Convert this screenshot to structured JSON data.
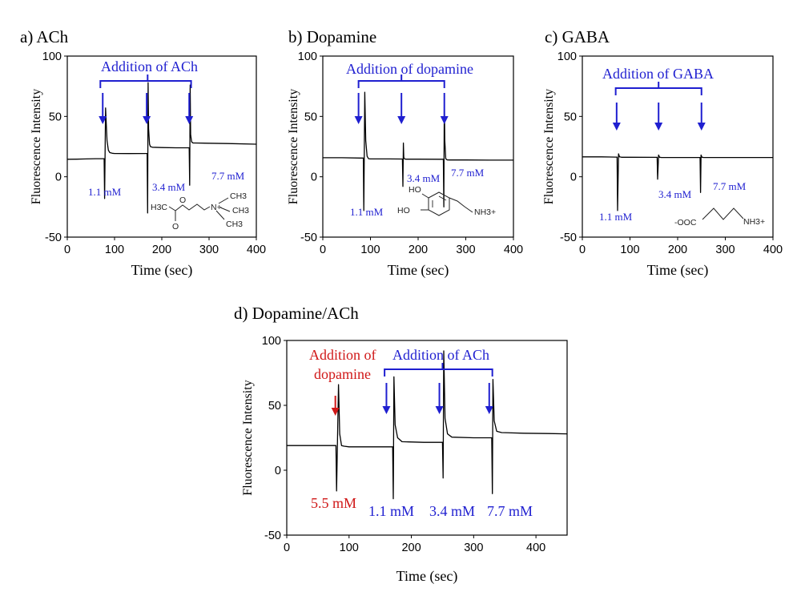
{
  "colors": {
    "trace": "#000000",
    "blue": "#1f1fd0",
    "red": "#d01818"
  },
  "chart_data": [
    {
      "id": "a",
      "type": "line",
      "title": "a) ACh",
      "xlabel": "Time (sec)",
      "ylabel": "Fluorescence Intensity",
      "xlim": [
        0,
        400
      ],
      "ylim": [
        -50,
        100
      ],
      "xticks": [
        0,
        100,
        200,
        300,
        400
      ],
      "yticks": [
        -50,
        0,
        50,
        100
      ],
      "grid": false,
      "series": [
        {
          "name": "ACh",
          "x": [
            0,
            20,
            40,
            60,
            75,
            78,
            79,
            81,
            84,
            87,
            90,
            95,
            100,
            130,
            165,
            169,
            170,
            171,
            172,
            174,
            176,
            180,
            200,
            230,
            255,
            258,
            259,
            260,
            261,
            263,
            266,
            270,
            300,
            340,
            400
          ],
          "y": [
            14.5,
            14.6,
            14.8,
            15,
            15,
            15,
            -18,
            57,
            30,
            22,
            20,
            19.5,
            19.3,
            19.2,
            19.3,
            19.3,
            -30,
            78,
            40,
            27,
            25,
            24.5,
            24.2,
            24,
            24,
            24,
            -7,
            76,
            35,
            29,
            28,
            28,
            27.8,
            27.5,
            27
          ]
        }
      ],
      "annotations": [
        {
          "kind": "bracket",
          "label": "Addition of ACh",
          "x_start": 70,
          "x_end": 262,
          "x_center": 170
        },
        {
          "kind": "arrow",
          "x": 75,
          "color": "blue"
        },
        {
          "kind": "arrow",
          "x": 168,
          "color": "blue"
        },
        {
          "kind": "arrow",
          "x": 258,
          "color": "blue"
        },
        {
          "kind": "text",
          "label": "1.1 mM",
          "x": 78,
          "y": -15
        },
        {
          "kind": "text",
          "label": "3.4 mM",
          "x": 170,
          "y": -8
        },
        {
          "kind": "text",
          "label": "7.7 mM",
          "x": 300,
          "y": -2
        }
      ],
      "structure": {
        "atoms": [
          "H3C",
          "O",
          "O",
          "N+",
          "CH3",
          "CH3",
          "CH3"
        ]
      }
    },
    {
      "id": "b",
      "type": "line",
      "title": "b) Dopamine",
      "xlabel": "Time (sec)",
      "ylabel": "Fluorescence Intensity",
      "xlim": [
        0,
        400
      ],
      "ylim": [
        -50,
        100
      ],
      "xticks": [
        0,
        100,
        200,
        300,
        400
      ],
      "yticks": [
        -50,
        0,
        50,
        100
      ],
      "grid": false,
      "series": [
        {
          "name": "Dopamine",
          "x": [
            0,
            40,
            80,
            85,
            86,
            88,
            90,
            93,
            96,
            100,
            140,
            167,
            168,
            169,
            170,
            172,
            175,
            200,
            250,
            253,
            254,
            255,
            256,
            258,
            261,
            265,
            300,
            350,
            400
          ],
          "y": [
            15.8,
            15.8,
            15.5,
            15.5,
            -28,
            70,
            30,
            17,
            15,
            14.8,
            14.8,
            14.7,
            -8,
            28,
            16,
            14.7,
            14.6,
            14.6,
            14.5,
            14.5,
            -25,
            66,
            30,
            15,
            14,
            13.9,
            13.9,
            13.8,
            13.8
          ]
        }
      ],
      "annotations": [
        {
          "kind": "bracket",
          "label": "Addition of dopamine",
          "x_start": 75,
          "x_end": 255,
          "x_center": 165
        },
        {
          "kind": "arrow",
          "x": 75,
          "color": "blue"
        },
        {
          "kind": "arrow",
          "x": 165,
          "color": "blue"
        },
        {
          "kind": "arrow",
          "x": 255,
          "color": "blue"
        },
        {
          "kind": "text",
          "label": "1.1 mM",
          "x": 95,
          "y": -32
        },
        {
          "kind": "text",
          "label": "3.4 mM",
          "x": 180,
          "y": -3
        },
        {
          "kind": "text",
          "label": "7.7 mM",
          "x": 280,
          "y": 2
        }
      ],
      "structure": {
        "atoms": [
          "HO",
          "HO",
          "NH3+"
        ]
      }
    },
    {
      "id": "c",
      "type": "line",
      "title": "c) GABA",
      "xlabel": "Time (sec)",
      "ylabel": "Fluorescence Intensity",
      "xlim": [
        0,
        400
      ],
      "ylim": [
        -50,
        100
      ],
      "xticks": [
        0,
        100,
        200,
        300,
        400
      ],
      "yticks": [
        -50,
        0,
        50,
        100
      ],
      "grid": false,
      "series": [
        {
          "name": "GABA",
          "x": [
            0,
            40,
            70,
            73,
            74,
            76,
            78,
            82,
            100,
            150,
            157,
            158,
            160,
            162,
            166,
            200,
            240,
            247,
            248,
            249,
            251,
            255,
            300,
            350,
            400
          ],
          "y": [
            16.5,
            16.5,
            16.3,
            16.3,
            -28,
            19,
            16.5,
            16.2,
            16.2,
            16.1,
            16.1,
            -2,
            18,
            16.2,
            16,
            16,
            16,
            16,
            -13,
            18,
            16.2,
            16,
            16,
            16,
            16
          ]
        }
      ],
      "annotations": [
        {
          "kind": "bracket",
          "label": "Addition of GABA",
          "x_start": 70,
          "x_end": 250,
          "x_center": 160
        },
        {
          "kind": "arrow",
          "x": 72,
          "color": "blue"
        },
        {
          "kind": "arrow",
          "x": 160,
          "color": "blue"
        },
        {
          "kind": "arrow",
          "x": 250,
          "color": "blue"
        },
        {
          "kind": "text",
          "label": "1.1 mM",
          "x": 95,
          "y": -32
        },
        {
          "kind": "text",
          "label": "3.4 mM",
          "x": 185,
          "y": -15
        },
        {
          "kind": "text",
          "label": "7.7 mM",
          "x": 310,
          "y": -6
        }
      ],
      "structure": {
        "atoms": [
          "-OOC",
          "NH3+"
        ]
      }
    },
    {
      "id": "d",
      "type": "line",
      "title": "d) Dopamine/ACh",
      "xlabel": "Time (sec)",
      "ylabel": "Fluorescence Intensity",
      "xlim": [
        0,
        450
      ],
      "ylim": [
        -50,
        100
      ],
      "xticks": [
        0,
        100,
        200,
        300,
        400
      ],
      "yticks": [
        -50,
        0,
        50,
        100
      ],
      "grid": false,
      "series": [
        {
          "name": "Dopamine/ACh",
          "x": [
            0,
            40,
            75,
            79,
            80,
            83,
            85,
            88,
            92,
            100,
            140,
            168,
            170,
            171,
            172,
            174,
            178,
            185,
            220,
            248,
            250,
            251,
            252,
            254,
            258,
            265,
            300,
            327,
            329,
            330,
            331,
            333,
            337,
            345,
            380,
            420,
            450
          ],
          "y": [
            19,
            19,
            19,
            19,
            -16,
            66,
            28,
            19,
            18.5,
            18,
            18,
            18,
            18,
            -22,
            72,
            35,
            25,
            22,
            21.5,
            21.5,
            21.5,
            -6,
            92,
            40,
            28,
            25.5,
            25,
            25,
            25,
            -18,
            70,
            38,
            30,
            29,
            28.5,
            28.3,
            28
          ]
        }
      ],
      "annotations": [
        {
          "kind": "text",
          "label": "Addition of",
          "x": 80,
          "color": "red"
        },
        {
          "kind": "text",
          "label": "dopamine",
          "x": 80,
          "color": "red"
        },
        {
          "kind": "arrow",
          "x": 78,
          "color": "red"
        },
        {
          "kind": "bracket",
          "label": "Addition of ACh",
          "x_start": 157,
          "x_end": 330,
          "x_center": 250
        },
        {
          "kind": "arrow",
          "x": 160,
          "color": "blue"
        },
        {
          "kind": "arrow",
          "x": 245,
          "color": "blue"
        },
        {
          "kind": "arrow",
          "x": 325,
          "color": "blue"
        },
        {
          "kind": "text",
          "label": "5.5 mM",
          "x": 80,
          "y": -37,
          "color": "red"
        },
        {
          "kind": "text",
          "label": "1.1 mM",
          "x": 165,
          "y": -43,
          "color": "blue"
        },
        {
          "kind": "text",
          "label": "3.4 mM",
          "x": 250,
          "y": -43,
          "color": "blue"
        },
        {
          "kind": "text",
          "label": "7.7 mM",
          "x": 335,
          "y": -43,
          "color": "blue"
        }
      ]
    }
  ]
}
